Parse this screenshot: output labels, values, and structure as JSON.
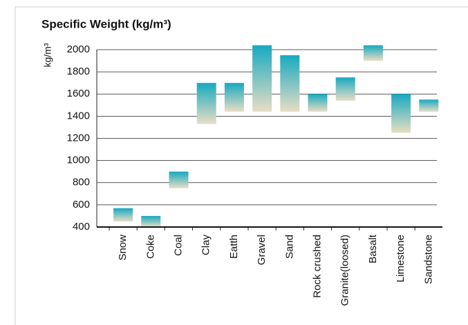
{
  "chart_data": {
    "type": "range-bar",
    "title": "Specific Weight (kg/m³)",
    "y_label": "kg/m³",
    "categories": [
      "Snow",
      "Coke",
      "Coal",
      "Clay",
      "Eatth",
      "Gravel",
      "Sand",
      "Rock crushed",
      "Granite(loosed)",
      "Basalt",
      "Limestone",
      "Sandstone"
    ],
    "low": [
      450,
      400,
      750,
      1330,
      1440,
      1440,
      1440,
      1440,
      1540,
      1900,
      1250,
      1440
    ],
    "high": [
      570,
      500,
      900,
      1700,
      1700,
      2040,
      1950,
      1600,
      1750,
      2040,
      1600,
      1550
    ],
    "color_top": "#17a9c0",
    "color_bottom": "#e8dec4",
    "ylim": [
      400,
      2000
    ],
    "yticks": [
      400,
      600,
      800,
      1000,
      1200,
      1400,
      1600,
      1800,
      2000
    ],
    "grid": true
  }
}
